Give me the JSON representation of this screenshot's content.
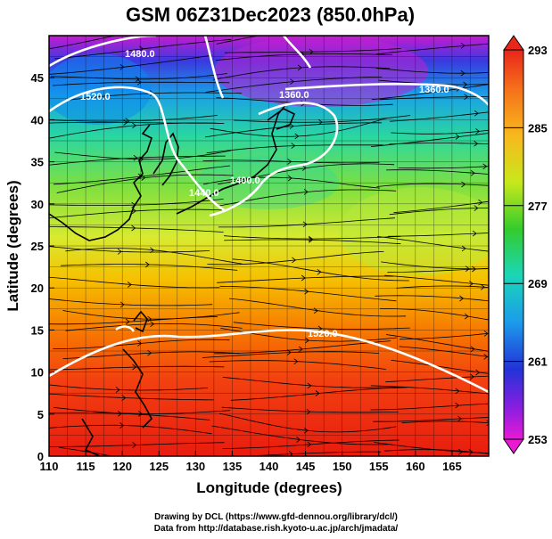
{
  "title": "GSM 06Z31Dec2023 (850.0hPa)",
  "xlabel": "Longitude (degrees)",
  "ylabel": "Latitude (degrees)",
  "x_ticks": [
    "110",
    "115",
    "120",
    "125",
    "130",
    "135",
    "140",
    "145",
    "150",
    "155",
    "160",
    "165"
  ],
  "y_ticks": [
    "0",
    "5",
    "10",
    "15",
    "20",
    "25",
    "30",
    "35",
    "40",
    "45"
  ],
  "colorbar": {
    "ticks": [
      "293",
      "285",
      "277",
      "269",
      "261",
      "253"
    ],
    "min": 253,
    "max": 293
  },
  "contour_labels": [
    {
      "text": "1480.0"
    },
    {
      "text": "1520.0"
    },
    {
      "text": "1360.0"
    },
    {
      "text": "1360.0"
    },
    {
      "text": "1400.0"
    },
    {
      "text": "1440.0"
    },
    {
      "text": "1520.0"
    }
  ],
  "credits": {
    "line1": "Drawing by DCL (https://www.gfd-dennou.org/library/dcl/)",
    "line2": "Data from http://database.rish.kyoto-u.ac.jp/arch/jmadata/"
  },
  "map": {
    "lon_range": [
      110,
      170
    ],
    "lat_range": [
      0,
      50
    ],
    "field": "temperature (K) with wind streamlines and geopotential height contours"
  }
}
